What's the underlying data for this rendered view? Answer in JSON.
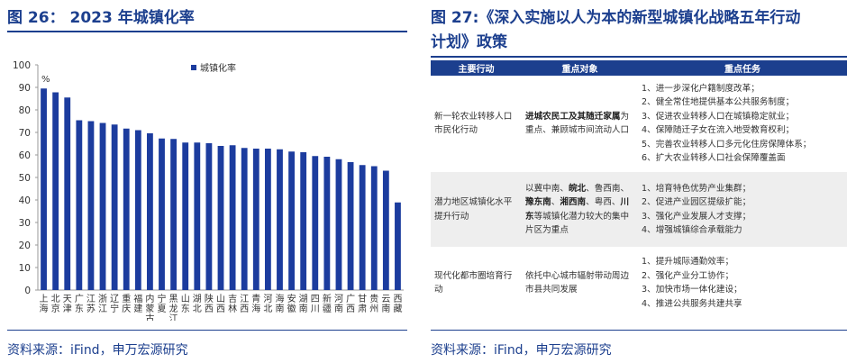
{
  "left_panel": {
    "figure_title": "图 26：   2023 年城镇化率",
    "source": "资料来源：iFind，申万宏源研究"
  },
  "right_panel": {
    "figure_title_line1": "图 27:《深入实施以人为本的新型城镇化战略五年行动",
    "figure_title_line2": "计划》政策",
    "source": "资料来源：iFind，申万宏源研究",
    "table": {
      "headers": [
        "主要行动",
        "重点对象",
        "重点任务"
      ],
      "rows": [
        {
          "action": "新一轮农业转移人口市民化行动",
          "target_bold": "进城农民工及其随迁家属",
          "target_rest": "为重点、兼顾城市间流动人口",
          "tasks": [
            "1、进一步深化户籍制度改革；",
            "2、健全常住地提供基本公共服务制度；",
            "3、促进农业转移人口在城镇稳定就业；",
            "4、保障随迁子女在流入地受教育权利；",
            "5、完善农业转移人口多元化住房保障体系；",
            "6、扩大农业转移人口社会保障覆盖面"
          ]
        },
        {
          "action": "潜力地区城镇化水平提升行动",
          "target_pre": "以冀中南、",
          "target_b1": "皖北",
          "target_mid1": "、鲁西南、",
          "target_b2": "豫东南",
          "target_mid2": "、",
          "target_b3": "湘西南",
          "target_mid3": "、粤西、",
          "target_b4": "川东",
          "target_post": "等城镇化潜力较大的集中片区为重点",
          "tasks": [
            "1、培育特色优势产业集群；",
            "2、促进产业园区提级扩能；",
            "3、强化产业发展人才支撑；",
            "4、增强城镇综合承载能力"
          ]
        },
        {
          "action": "现代化都市圈培育行动",
          "target": "依托中心城市辐射带动周边市县共同发展",
          "tasks": [
            "1、提升城际通勤效率；",
            "2、强化产业分工协作；",
            "3、加快市场一体化建设；",
            "4、推进公共服务共建共享"
          ]
        }
      ]
    }
  },
  "chart_data": {
    "type": "bar",
    "title": "",
    "unit_label": "%",
    "legend": "城镇化率",
    "legend_position": "top-center",
    "ylim": [
      0,
      100
    ],
    "yticks": [
      0,
      10,
      20,
      30,
      40,
      50,
      60,
      70,
      80,
      90,
      100
    ],
    "grid": false,
    "bar_color": "#1c3c9e",
    "categories": [
      "上海",
      "北京",
      "天津",
      "广东",
      "江苏",
      "浙江",
      "辽宁",
      "重庆",
      "福建",
      "内蒙古",
      "宁夏",
      "黑龙江",
      "山东",
      "湖北",
      "陕西",
      "山西",
      "吉林",
      "江西",
      "青海",
      "河北",
      "海南",
      "安徽",
      "湖南",
      "四川",
      "新疆",
      "河南",
      "广西",
      "甘肃",
      "贵州",
      "云南",
      "西藏"
    ],
    "label_lines": [
      [
        "上",
        "海"
      ],
      [
        "北",
        "京"
      ],
      [
        "天",
        "津"
      ],
      [
        "广",
        "东"
      ],
      [
        "江",
        "苏"
      ],
      [
        "浙",
        "江"
      ],
      [
        "辽",
        "宁"
      ],
      [
        "重",
        "庆"
      ],
      [
        "福",
        "建"
      ],
      [
        "内",
        "蒙",
        "古"
      ],
      [
        "宁",
        "夏"
      ],
      [
        "黑",
        "龙",
        "江"
      ],
      [
        "山",
        "东"
      ],
      [
        "湖",
        "北"
      ],
      [
        "陕",
        "西"
      ],
      [
        "山",
        "西"
      ],
      [
        "吉",
        "林"
      ],
      [
        "江",
        "西"
      ],
      [
        "青",
        "海"
      ],
      [
        "河",
        "北"
      ],
      [
        "海",
        "南"
      ],
      [
        "安",
        "徽"
      ],
      [
        "湖",
        "南"
      ],
      [
        "四",
        "川"
      ],
      [
        "新",
        "疆"
      ],
      [
        "河",
        "南"
      ],
      [
        "广",
        "西"
      ],
      [
        "甘",
        "肃"
      ],
      [
        "贵",
        "州"
      ],
      [
        "云",
        "南"
      ],
      [
        "西",
        "藏"
      ]
    ],
    "values": [
      89.5,
      87.8,
      85.5,
      75.4,
      75.0,
      74.2,
      73.5,
      71.7,
      71.0,
      69.6,
      67.3,
      67.1,
      65.5,
      65.5,
      65.2,
      64.0,
      64.3,
      63.1,
      62.8,
      62.8,
      62.5,
      61.5,
      61.2,
      59.5,
      59.2,
      58.1,
      56.8,
      55.5,
      55.0,
      53.0,
      38.9
    ]
  }
}
